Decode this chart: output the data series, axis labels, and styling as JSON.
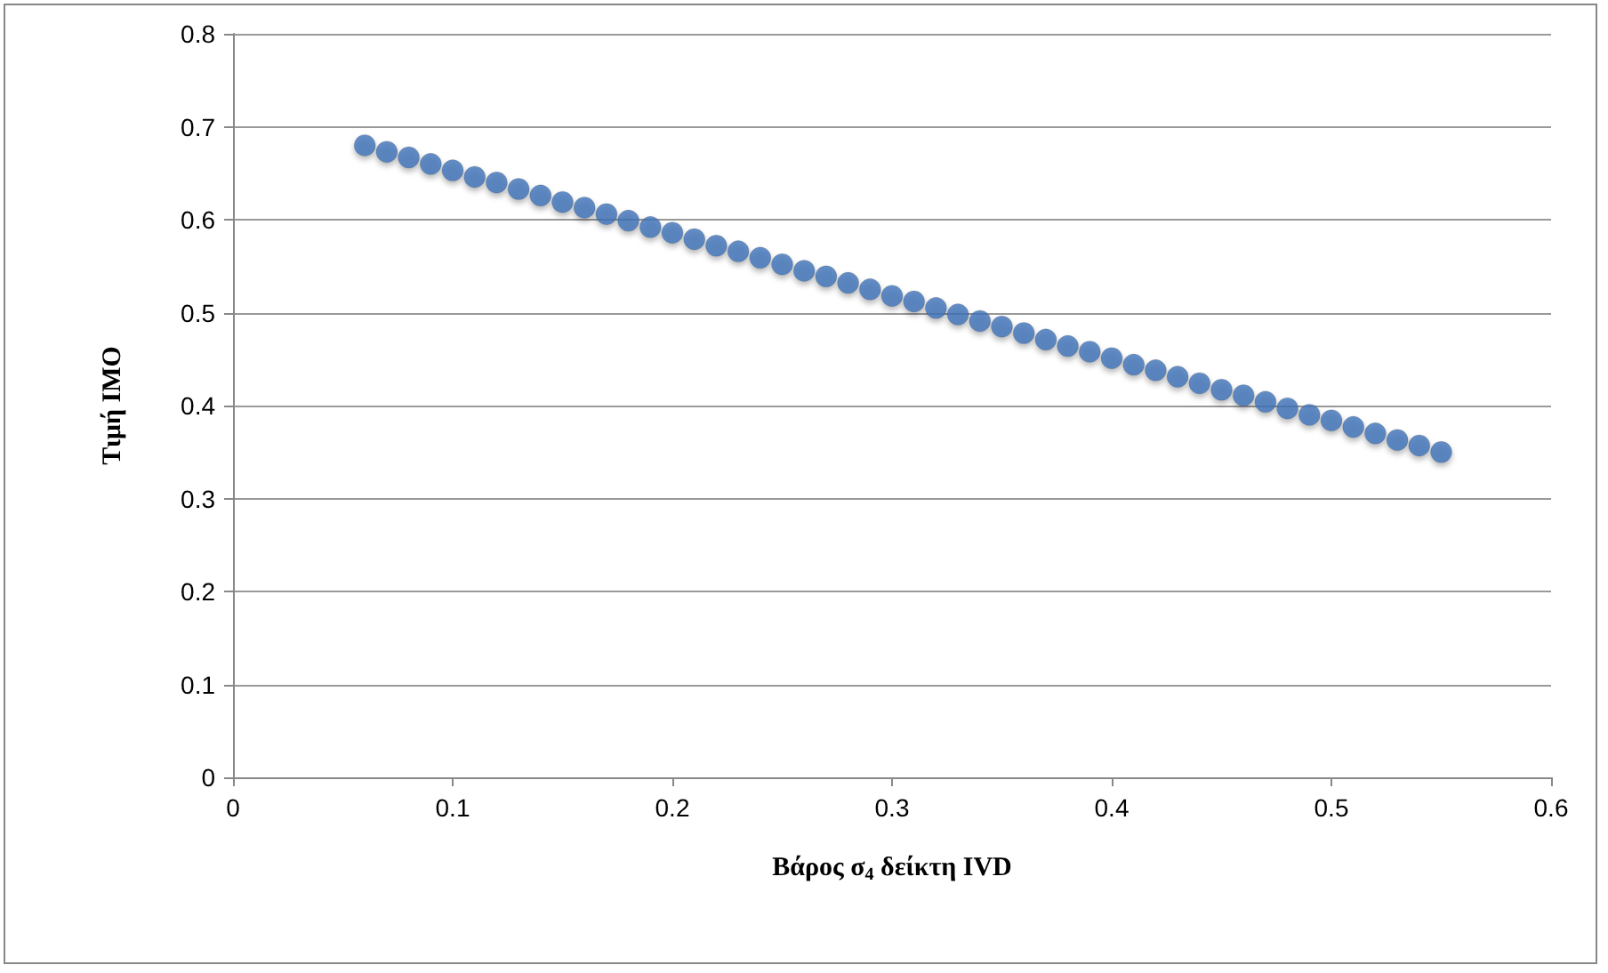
{
  "chart_data": {
    "type": "scatter",
    "xlabel": "Βάρος σ$_{4}$ δείκτη IVD",
    "ylabel": "Τιμή IMO",
    "x": [
      0.06,
      0.07,
      0.08,
      0.09,
      0.1,
      0.11,
      0.12,
      0.13,
      0.14,
      0.15,
      0.16,
      0.17,
      0.18,
      0.19,
      0.2,
      0.21,
      0.22,
      0.23,
      0.24,
      0.25,
      0.26,
      0.27,
      0.28,
      0.29,
      0.3,
      0.31,
      0.32,
      0.33,
      0.34,
      0.35,
      0.36,
      0.37,
      0.38,
      0.39,
      0.4,
      0.41,
      0.42,
      0.43,
      0.44,
      0.45,
      0.46,
      0.47,
      0.48,
      0.49,
      0.5,
      0.51,
      0.52,
      0.53,
      0.54,
      0.55
    ],
    "series": [
      {
        "color": "#3d72b8",
        "values": [
          0.68,
          0.673,
          0.667,
          0.66,
          0.653,
          0.646,
          0.64,
          0.633,
          0.626,
          0.619,
          0.613,
          0.606,
          0.599,
          0.592,
          0.586,
          0.579,
          0.572,
          0.566,
          0.559,
          0.552,
          0.545,
          0.539,
          0.532,
          0.525,
          0.518,
          0.512,
          0.505,
          0.498,
          0.491,
          0.485,
          0.478,
          0.471,
          0.464,
          0.458,
          0.451,
          0.444,
          0.438,
          0.431,
          0.424,
          0.417,
          0.411,
          0.404,
          0.397,
          0.39,
          0.384,
          0.377,
          0.37,
          0.363,
          0.357,
          0.35
        ]
      }
    ],
    "xlim": [
      0,
      0.6
    ],
    "xticks": [
      0,
      0.1,
      0.2,
      0.3,
      0.4,
      0.5,
      0.6
    ],
    "ylim": [
      0,
      0.8
    ],
    "yticks": [
      0,
      0.1,
      0.2,
      0.3,
      0.4,
      0.5,
      0.6,
      0.7,
      0.8
    ],
    "grid": "y",
    "marker": "circle"
  }
}
